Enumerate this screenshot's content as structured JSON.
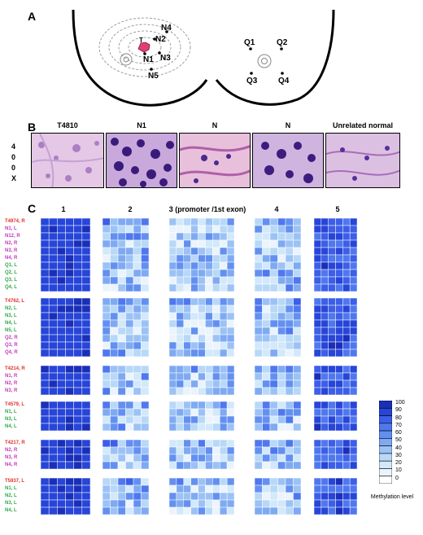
{
  "panels": {
    "a": "A",
    "b": "B",
    "c": "C"
  },
  "panel_a": {
    "left_points": [
      "T",
      "N1",
      "N2",
      "N3",
      "N4",
      "N5"
    ],
    "right_points": [
      "Q1",
      "Q2",
      "Q3",
      "Q4"
    ]
  },
  "panel_b": {
    "labels": [
      "T4810",
      "N1",
      "N",
      "N",
      "Unrelated normal"
    ],
    "magnification": [
      "4",
      "0",
      "0",
      "X"
    ]
  },
  "panel_c": {
    "column_headers": [
      "1",
      "2",
      "3 (promoter /1st exon)",
      "4",
      "5"
    ],
    "groups": [
      {
        "rows": [
          {
            "label": "T4974, R",
            "color": "#e0302a"
          },
          {
            "label": "N1, L",
            "color": "#c13bb8"
          },
          {
            "label": "N12, R",
            "color": "#c13bb8"
          },
          {
            "label": "N2, R",
            "color": "#c13bb8"
          },
          {
            "label": "N3, R",
            "color": "#c13bb8"
          },
          {
            "label": "N4, R",
            "color": "#c13bb8"
          },
          {
            "label": "Q1, L",
            "color": "#2ea84a"
          },
          {
            "label": "Q2, L",
            "color": "#2ea84a"
          },
          {
            "label": "Q3, L",
            "color": "#2ea84a"
          },
          {
            "label": "Q4, L",
            "color": "#2ea84a"
          }
        ]
      },
      {
        "rows": [
          {
            "label": "T4762, L",
            "color": "#e0302a"
          },
          {
            "label": "N2, L",
            "color": "#2ea84a"
          },
          {
            "label": "N3, L",
            "color": "#2ea84a"
          },
          {
            "label": "N4, L",
            "color": "#2ea84a"
          },
          {
            "label": "N5, L",
            "color": "#2ea84a"
          },
          {
            "label": "Q2, R",
            "color": "#c13bb8"
          },
          {
            "label": "Q3, R",
            "color": "#c13bb8"
          },
          {
            "label": "Q4, R",
            "color": "#c13bb8"
          }
        ]
      },
      {
        "rows": [
          {
            "label": "T4214, R",
            "color": "#e0302a"
          },
          {
            "label": "N1, R",
            "color": "#c13bb8"
          },
          {
            "label": "N2, R",
            "color": "#c13bb8"
          },
          {
            "label": "N3, R",
            "color": "#c13bb8"
          }
        ]
      },
      {
        "rows": [
          {
            "label": "T4579, L",
            "color": "#e0302a"
          },
          {
            "label": "N1, L",
            "color": "#2ea84a"
          },
          {
            "label": "N3, L",
            "color": "#2ea84a"
          },
          {
            "label": "N4, L",
            "color": "#2ea84a"
          }
        ]
      },
      {
        "rows": [
          {
            "label": "T4217, R",
            "color": "#e0302a"
          },
          {
            "label": "N2, R",
            "color": "#c13bb8"
          },
          {
            "label": "N3, R",
            "color": "#c13bb8"
          },
          {
            "label": "N4, R",
            "color": "#c13bb8"
          }
        ]
      },
      {
        "rows": [
          {
            "label": "T5937, L",
            "color": "#e0302a"
          },
          {
            "label": "N1, L",
            "color": "#2ea84a"
          },
          {
            "label": "N2, L",
            "color": "#2ea84a"
          },
          {
            "label": "N3, L",
            "color": "#2ea84a"
          },
          {
            "label": "N4, L",
            "color": "#2ea84a"
          }
        ]
      }
    ],
    "legend": {
      "values": [
        "100",
        "90",
        "80",
        "70",
        "60",
        "50",
        "40",
        "30",
        "20",
        "10",
        "0"
      ],
      "colors": [
        "#1a2fb8",
        "#2745d8",
        "#3c5ee8",
        "#4f78ee",
        "#6390f0",
        "#7faaf2",
        "#9cc2f5",
        "#b8d8f8",
        "#d2e8fb",
        "#ebf4fd",
        "#ffffff"
      ],
      "title": "Methylation level"
    }
  }
}
